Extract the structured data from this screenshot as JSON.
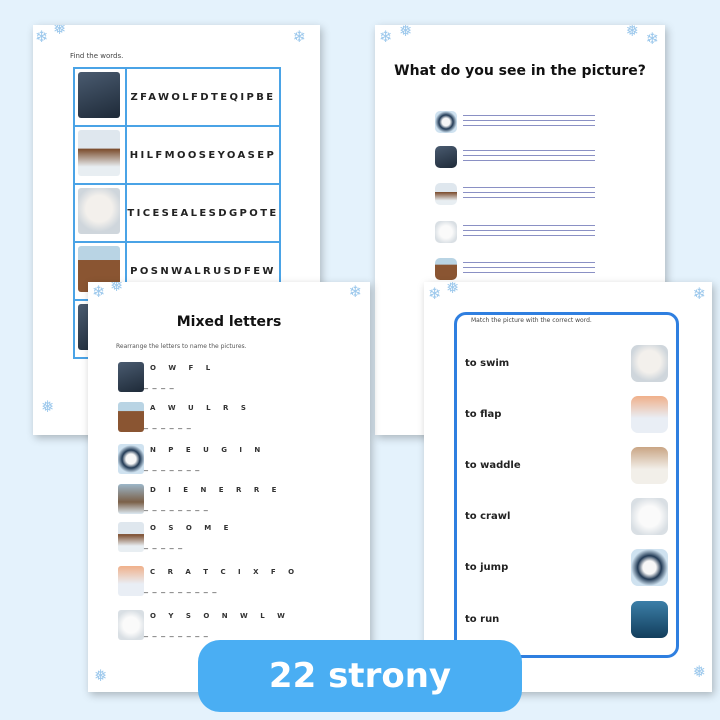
{
  "find_words": {
    "instruction": "Find the words.",
    "rows": [
      {
        "animal": "wolf",
        "letters": "ZFAWOLFDTEQIPBE"
      },
      {
        "animal": "moose",
        "letters": "HILFMOOSEYOASEP"
      },
      {
        "animal": "seal",
        "letters": "TICESEALESDGPOTE"
      },
      {
        "animal": "walrus",
        "letters": "POSNWALRUSDFEW"
      }
    ]
  },
  "see_picture": {
    "title": "What do you see in the picture?",
    "animals": [
      "penguin",
      "wolf",
      "moose",
      "owl",
      "walrus"
    ]
  },
  "mixed_letters": {
    "title": "Mixed letters",
    "instruction": "Rearrange the letters to name the pictures.",
    "rows": [
      {
        "animal": "wolf",
        "letters": "O W F L",
        "blanks": "_ _ _ _"
      },
      {
        "animal": "walrus",
        "letters": "A W U L R S",
        "blanks": "_ _ _ _ _ _"
      },
      {
        "animal": "penguin",
        "letters": "N P E U G I N",
        "blanks": "_ _ _ _ _ _ _"
      },
      {
        "animal": "deer",
        "letters": "D I E N E R R E",
        "blanks": "_ _ _ _ _ _ _ _"
      },
      {
        "animal": "moose",
        "letters": "O S O M E",
        "blanks": "_ _ _ _ _"
      },
      {
        "animal": "fox",
        "letters": "C R A T C I X F O",
        "blanks": "_ _ _ _ _ _ _ _ _"
      },
      {
        "animal": "owl",
        "letters": "O Y S O N W L W",
        "blanks": "_ _ _ _ _ _ _ _"
      }
    ]
  },
  "match": {
    "instruction": "Match the picture with the correct word.",
    "rows": [
      {
        "word": "to swim",
        "animal": "seal"
      },
      {
        "word": "to flap",
        "animal": "fox"
      },
      {
        "word": "to waddle",
        "animal": "rabbit"
      },
      {
        "word": "to crawl",
        "animal": "owl"
      },
      {
        "word": "to jump",
        "animal": "penguin"
      },
      {
        "word": "to run",
        "animal": "orca"
      }
    ]
  },
  "badge": "22 strony",
  "colors": {
    "background": "#e4f2fc",
    "badge": "#4aaef3",
    "table_border": "#4aa3e6",
    "frame": "#2f7fe0"
  }
}
